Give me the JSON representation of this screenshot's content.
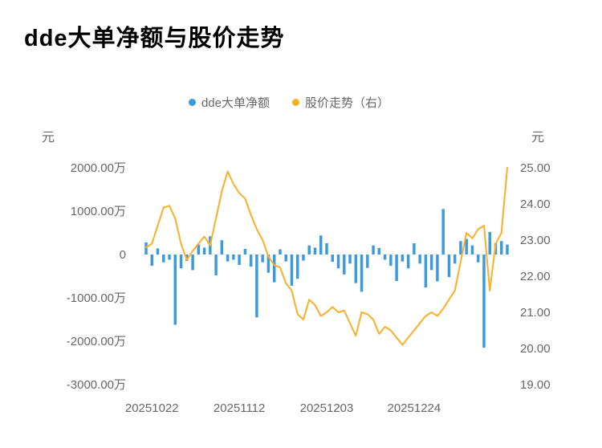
{
  "title": "dde大单净额与股价走势",
  "legend": [
    {
      "label": "dde大单净额",
      "color": "#3D9BDC"
    },
    {
      "label": "股价走势（右）",
      "color": "#FBAE27"
    }
  ],
  "left_axis": {
    "unit": "元",
    "tick_labels": [
      "2000.00万",
      "1000.00万",
      "0",
      "-1000.00万",
      "-2000.00万",
      "-3000.00万"
    ],
    "tick_values": [
      2000,
      1000,
      0,
      -1000,
      -2000,
      -3000
    ]
  },
  "right_axis": {
    "unit": "元",
    "tick_labels": [
      "25.00",
      "24.00",
      "23.00",
      "22.00",
      "21.00",
      "20.00",
      "19.00"
    ],
    "tick_values": [
      25,
      24,
      23,
      22,
      21,
      20,
      19
    ]
  },
  "x_axis": {
    "tick_labels": [
      "20251022",
      "20251112",
      "20251203",
      "20251224"
    ],
    "tick_indices": [
      1,
      16,
      31,
      46
    ]
  },
  "chart_data": {
    "type": "bar+line",
    "title": "dde大单净额与股价走势",
    "grid": false,
    "legend_position": "top-center",
    "left_ylim": [
      -3000,
      2000
    ],
    "left_unit": "万元",
    "right_ylim": [
      19,
      25
    ],
    "right_unit": "元",
    "x_range": [
      "20251022",
      "20260115"
    ],
    "series": [
      {
        "name": "dde大单净额",
        "type": "bar",
        "axis": "left",
        "unit": "万元",
        "color": "#3D9BDC",
        "values": [
          280,
          -260,
          140,
          -180,
          -120,
          -1620,
          -320,
          -150,
          -360,
          230,
          160,
          420,
          -480,
          330,
          -160,
          -120,
          -240,
          130,
          -280,
          -1450,
          -180,
          -420,
          -640,
          120,
          -160,
          -720,
          -560,
          -140,
          210,
          160,
          440,
          260,
          -170,
          -320,
          -460,
          -210,
          -660,
          -860,
          -310,
          210,
          150,
          -120,
          -260,
          -610,
          -160,
          -320,
          260,
          -210,
          -760,
          -360,
          -620,
          1050,
          -520,
          -210,
          310,
          360,
          210,
          -180,
          -2150,
          520,
          260,
          310,
          230
        ]
      },
      {
        "name": "股价走势（右）",
        "type": "line",
        "axis": "right",
        "unit": "元",
        "color": "#FBAE27",
        "values": [
          22.8,
          22.9,
          23.4,
          23.9,
          23.95,
          23.6,
          22.9,
          22.45,
          22.7,
          22.9,
          23.1,
          22.85,
          23.6,
          24.35,
          24.9,
          24.55,
          24.3,
          24.15,
          23.7,
          23.3,
          23.0,
          22.55,
          22.3,
          22.25,
          21.8,
          21.6,
          20.95,
          20.8,
          21.35,
          21.2,
          20.9,
          21.0,
          21.15,
          21.0,
          21.05,
          20.7,
          20.35,
          21.0,
          20.95,
          20.8,
          20.4,
          20.6,
          20.5,
          20.3,
          20.1,
          20.3,
          20.5,
          20.7,
          20.9,
          21.0,
          20.9,
          21.1,
          21.35,
          21.6,
          22.4,
          23.2,
          23.05,
          23.3,
          23.4,
          21.6,
          22.9,
          23.2,
          25.0
        ]
      }
    ]
  }
}
